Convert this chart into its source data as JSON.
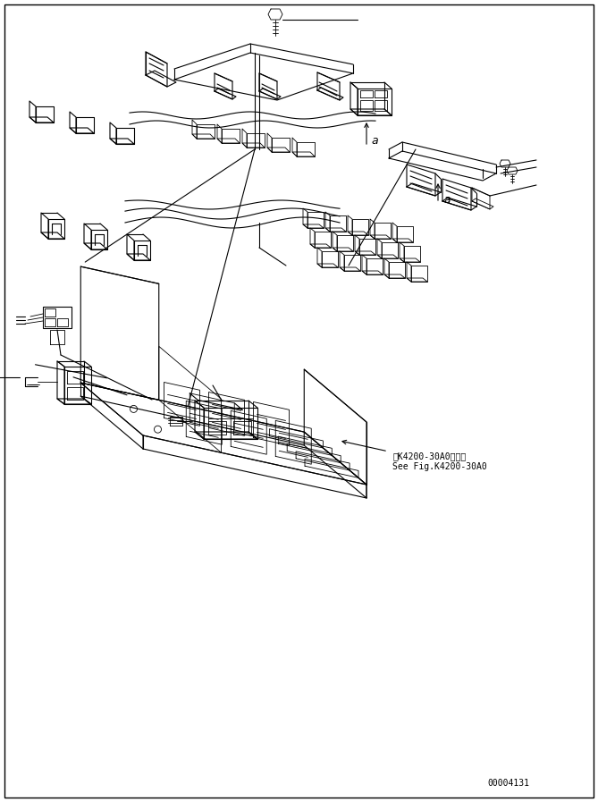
{
  "bg_color": "#ffffff",
  "line_color": "#000000",
  "text_color": "#000000",
  "fig_width": 6.69,
  "fig_height": 8.97,
  "dpi": 100,
  "annotation_text1": "第K4200-30A0図参照",
  "annotation_text2": "See Fig.K4200-30A0",
  "label_a1": "a",
  "label_a2": "a",
  "watermark": "00004131"
}
